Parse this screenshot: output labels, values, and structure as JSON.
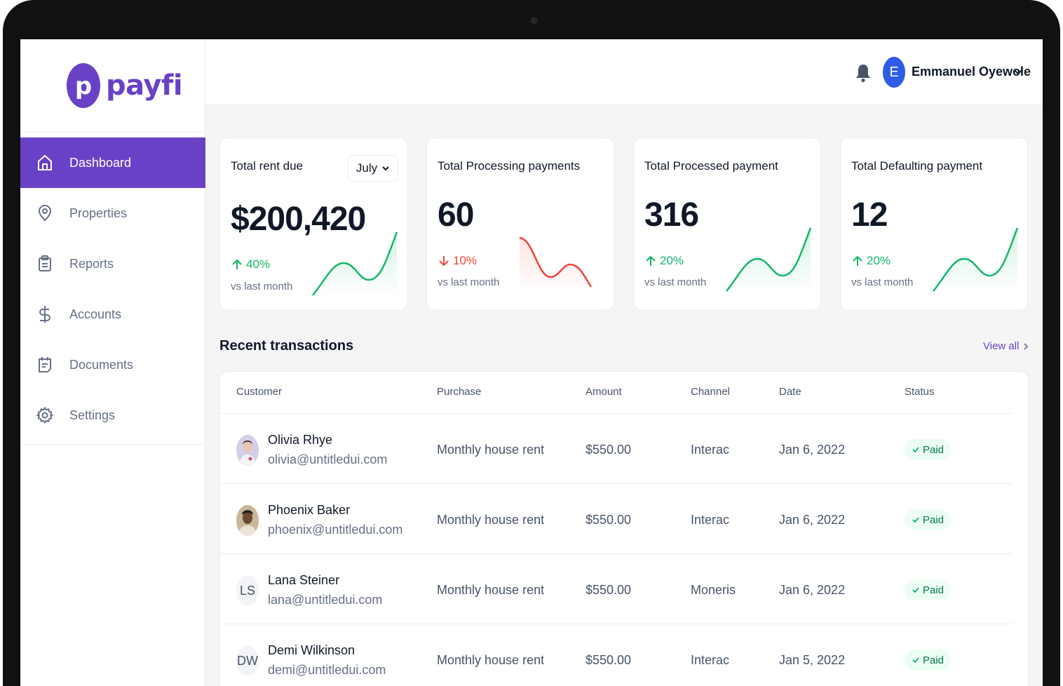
{
  "brand": {
    "name": "payfi",
    "logo_letter": "p",
    "accent": "#6941c6"
  },
  "sidebar": {
    "items": [
      {
        "label": "Dashboard",
        "icon": "home-icon",
        "active": true
      },
      {
        "label": "Properties",
        "icon": "map-pin-icon",
        "active": false
      },
      {
        "label": "Reports",
        "icon": "clipboard-icon",
        "active": false
      },
      {
        "label": "Accounts",
        "icon": "dollar-icon",
        "active": false
      },
      {
        "label": "Documents",
        "icon": "document-icon",
        "active": false
      },
      {
        "label": "Settings",
        "icon": "gear-icon",
        "active": false
      }
    ]
  },
  "header": {
    "notification_icon": "bell-icon",
    "user": {
      "initial": "E",
      "name": "Emmanuel Oyewole",
      "avatar_color": "#2e5ce6"
    }
  },
  "stats": [
    {
      "title": "Total rent due",
      "value": "$200,420",
      "change": "40%",
      "direction": "up",
      "sub": "vs last month",
      "filter": "July"
    },
    {
      "title": "Total Processing payments",
      "value": "60",
      "change": "10%",
      "direction": "down",
      "sub": "vs last month"
    },
    {
      "title": "Total Processed payment",
      "value": "316",
      "change": "20%",
      "direction": "up",
      "sub": "vs last month"
    },
    {
      "title": "Total Defaulting payment",
      "value": "12",
      "change": "20%",
      "direction": "up",
      "sub": "vs last month"
    }
  ],
  "colors": {
    "up": "#12b76a",
    "down": "#f04438"
  },
  "transactions": {
    "title": "Recent transactions",
    "view_all": "View all",
    "columns": [
      "Customer",
      "Purchase",
      "Amount",
      "Channel",
      "Date",
      "Status"
    ],
    "rows": [
      {
        "name": "Olivia Rhye",
        "email": "olivia@untitledui.com",
        "initials": "",
        "avatar": "photo",
        "purchase": "Monthly house rent",
        "amount": "$550.00",
        "channel": "Interac",
        "date": "Jan 6, 2022",
        "status": "Paid"
      },
      {
        "name": "Phoenix Baker",
        "email": "phoenix@untitledui.com",
        "initials": "",
        "avatar": "photo",
        "purchase": "Monthly house rent",
        "amount": "$550.00",
        "channel": "Interac",
        "date": "Jan 6, 2022",
        "status": "Paid"
      },
      {
        "name": "Lana Steiner",
        "email": "lana@untitledui.com",
        "initials": "LS",
        "avatar": "initials",
        "purchase": "Monthly house rent",
        "amount": "$550.00",
        "channel": "Moneris",
        "date": "Jan 6, 2022",
        "status": "Paid"
      },
      {
        "name": "Demi Wilkinson",
        "email": "demi@untitledui.com",
        "initials": "DW",
        "avatar": "initials",
        "purchase": "Monthly house rent",
        "amount": "$550.00",
        "channel": "Interac",
        "date": "Jan 5, 2022",
        "status": "Paid"
      }
    ]
  }
}
